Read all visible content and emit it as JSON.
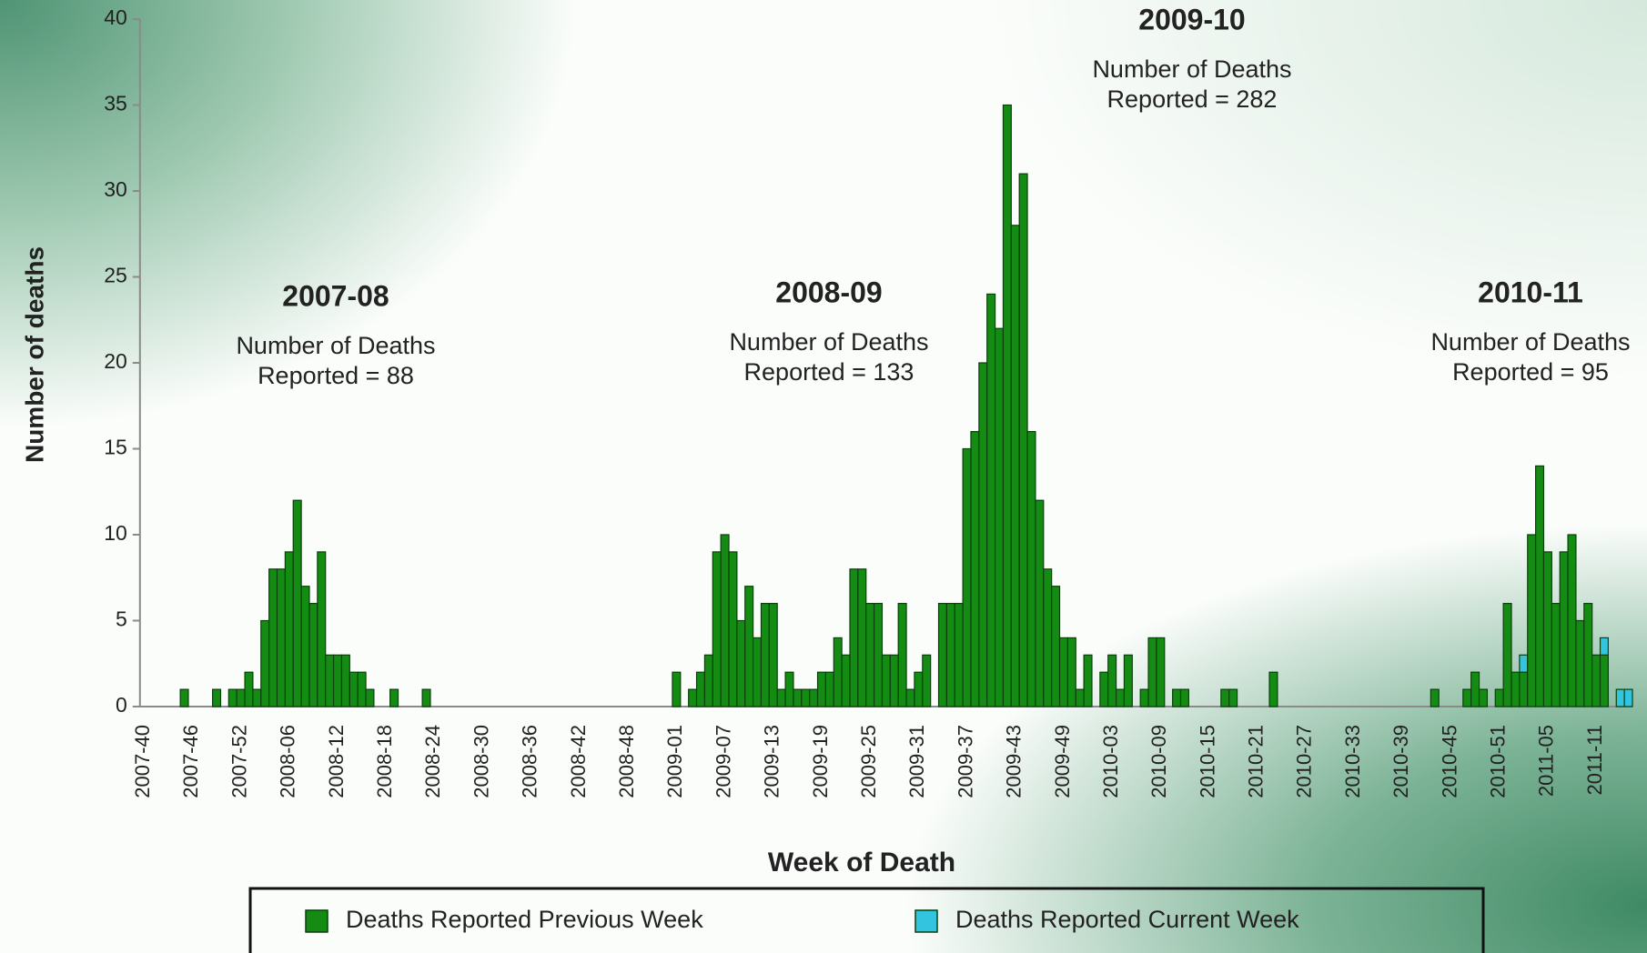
{
  "chart_data": {
    "type": "bar",
    "stacked": true,
    "x_label": "Week of Death",
    "y_label": "Number of deaths",
    "ylim": [
      0,
      40
    ],
    "yticks": [
      0,
      5,
      10,
      15,
      20,
      25,
      30,
      35,
      40
    ],
    "legend": "bottom",
    "annotations": [
      {
        "title": "2007-08",
        "lines": [
          "Number of Deaths",
          "Reported = 88"
        ]
      },
      {
        "title": "2008-09",
        "lines": [
          "Number of Deaths",
          "Reported = 133"
        ]
      },
      {
        "title": "2009-10",
        "lines": [
          "Number of Deaths",
          "Reported = 282"
        ]
      },
      {
        "title": "2010-11",
        "lines": [
          "Number of Deaths",
          "Reported = 95"
        ]
      }
    ],
    "categories": [
      "2007-40",
      null,
      null,
      null,
      null,
      null,
      "2007-46",
      null,
      null,
      null,
      null,
      null,
      "2007-52",
      null,
      null,
      null,
      null,
      null,
      "2008-06",
      null,
      null,
      null,
      null,
      null,
      "2008-12",
      null,
      null,
      null,
      null,
      null,
      "2008-18",
      null,
      null,
      null,
      null,
      null,
      "2008-24",
      null,
      null,
      null,
      null,
      null,
      "2008-30",
      null,
      null,
      null,
      null,
      null,
      "2008-36",
      null,
      null,
      null,
      null,
      null,
      "2008-42",
      null,
      null,
      null,
      null,
      null,
      "2008-48",
      null,
      null,
      null,
      null,
      null,
      "2009-01",
      null,
      null,
      null,
      null,
      null,
      "2009-07",
      null,
      null,
      null,
      null,
      null,
      "2009-13",
      null,
      null,
      null,
      null,
      null,
      "2009-19",
      null,
      null,
      null,
      null,
      null,
      "2009-25",
      null,
      null,
      null,
      null,
      null,
      "2009-31",
      null,
      null,
      null,
      null,
      null,
      "2009-37",
      null,
      null,
      null,
      null,
      null,
      "2009-43",
      null,
      null,
      null,
      null,
      null,
      "2009-49",
      null,
      null,
      null,
      null,
      null,
      "2010-03",
      null,
      null,
      null,
      null,
      null,
      "2010-09",
      null,
      null,
      null,
      null,
      null,
      "2010-15",
      null,
      null,
      null,
      null,
      null,
      "2010-21",
      null,
      null,
      null,
      null,
      null,
      "2010-27",
      null,
      null,
      null,
      null,
      null,
      "2010-33",
      null,
      null,
      null,
      null,
      null,
      "2010-39",
      null,
      null,
      null,
      null,
      null,
      "2010-45",
      null,
      null,
      null,
      null,
      null,
      "2010-51",
      null,
      null,
      null,
      null,
      null,
      "2011-05",
      null,
      null,
      null,
      null,
      null,
      "2011-11",
      null,
      null,
      null,
      null
    ],
    "series": [
      {
        "name": "Deaths Reported Previous Week",
        "color": "#148c14",
        "values": [
          0,
          0,
          0,
          0,
          0,
          1,
          0,
          0,
          0,
          1,
          0,
          1,
          1,
          2,
          1,
          5,
          8,
          8,
          9,
          12,
          7,
          6,
          9,
          3,
          3,
          3,
          2,
          2,
          1,
          0,
          0,
          1,
          0,
          0,
          0,
          1,
          0,
          0,
          0,
          0,
          0,
          0,
          0,
          0,
          0,
          0,
          0,
          0,
          0,
          0,
          0,
          0,
          0,
          0,
          0,
          0,
          0,
          0,
          0,
          0,
          0,
          0,
          0,
          0,
          0,
          0,
          2,
          0,
          1,
          2,
          3,
          9,
          10,
          9,
          5,
          7,
          4,
          6,
          6,
          1,
          2,
          1,
          1,
          1,
          2,
          2,
          4,
          3,
          8,
          8,
          6,
          6,
          3,
          3,
          6,
          1,
          2,
          3,
          0,
          6,
          6,
          6,
          15,
          16,
          20,
          24,
          22,
          35,
          28,
          31,
          16,
          12,
          8,
          7,
          4,
          4,
          1,
          3,
          0,
          2,
          3,
          1,
          3,
          0,
          1,
          4,
          4,
          0,
          1,
          1,
          0,
          0,
          0,
          0,
          1,
          1,
          0,
          0,
          0,
          0,
          2,
          0,
          0,
          0,
          0,
          0,
          0,
          0,
          0,
          0,
          0,
          0,
          0,
          0,
          0,
          0,
          0,
          0,
          0,
          0,
          1,
          0,
          0,
          0,
          1,
          2,
          1,
          0,
          1,
          6,
          2,
          2,
          10,
          14,
          9,
          6,
          9,
          10,
          5,
          6,
          3,
          3,
          0,
          0,
          0
        ]
      },
      {
        "name": "Deaths Reported Current Week",
        "color": "#33c4e0",
        "values": [
          0,
          0,
          0,
          0,
          0,
          0,
          0,
          0,
          0,
          0,
          0,
          0,
          0,
          0,
          0,
          0,
          0,
          0,
          0,
          0,
          0,
          0,
          0,
          0,
          0,
          0,
          0,
          0,
          0,
          0,
          0,
          0,
          0,
          0,
          0,
          0,
          0,
          0,
          0,
          0,
          0,
          0,
          0,
          0,
          0,
          0,
          0,
          0,
          0,
          0,
          0,
          0,
          0,
          0,
          0,
          0,
          0,
          0,
          0,
          0,
          0,
          0,
          0,
          0,
          0,
          0,
          0,
          0,
          0,
          0,
          0,
          0,
          0,
          0,
          0,
          0,
          0,
          0,
          0,
          0,
          0,
          0,
          0,
          0,
          0,
          0,
          0,
          0,
          0,
          0,
          0,
          0,
          0,
          0,
          0,
          0,
          0,
          0,
          0,
          0,
          0,
          0,
          0,
          0,
          0,
          0,
          0,
          0,
          0,
          0,
          0,
          0,
          0,
          0,
          0,
          0,
          0,
          0,
          0,
          0,
          0,
          0,
          0,
          0,
          0,
          0,
          0,
          0,
          0,
          0,
          0,
          0,
          0,
          0,
          0,
          0,
          0,
          0,
          0,
          0,
          0,
          0,
          0,
          0,
          0,
          0,
          0,
          0,
          0,
          0,
          0,
          0,
          0,
          0,
          0,
          0,
          0,
          0,
          0,
          0,
          0,
          0,
          0,
          0,
          0,
          0,
          0,
          0,
          0,
          0,
          0,
          1,
          0,
          0,
          0,
          0,
          0,
          0,
          0,
          0,
          0,
          1,
          0,
          1,
          1
        ]
      }
    ]
  }
}
